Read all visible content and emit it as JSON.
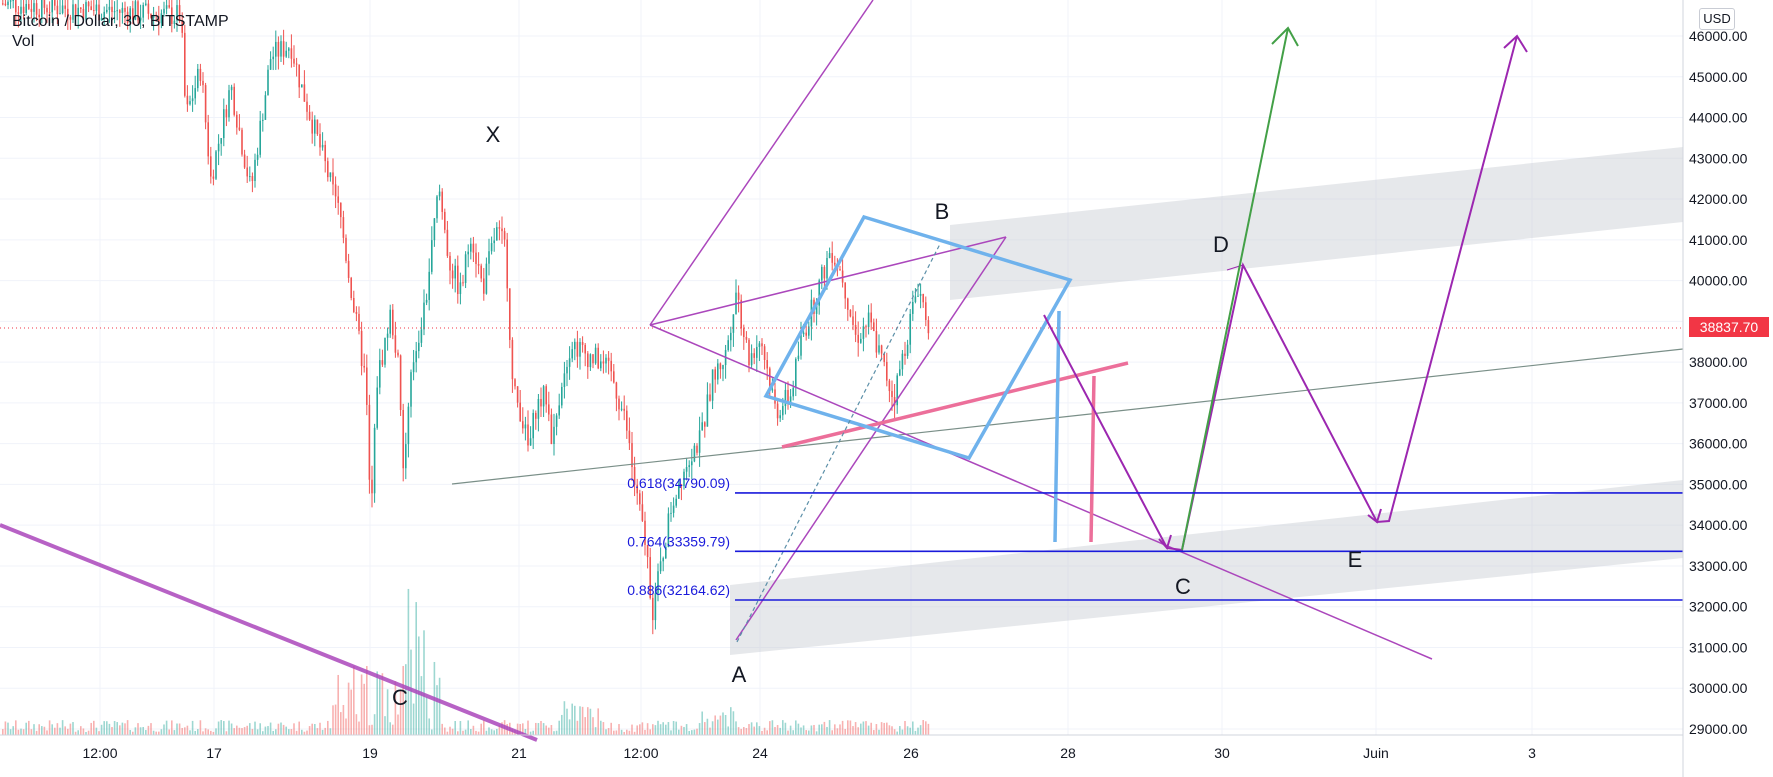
{
  "header": {
    "symbol_line": "Bitcoin / Dollar, 30, BITSTAMP",
    "vol_label": "Vol"
  },
  "currency_badge": "USD",
  "last_price": "38837.70",
  "colors": {
    "up": "#26a69a",
    "down": "#ef5350",
    "fib_line": "#1a1adb",
    "blue_channel": "#6fb2ec",
    "purple": "#ab47bc",
    "green_arrow": "#43a047",
    "pink": "#ec6f9a",
    "last_price": "#f23645"
  },
  "chart_data": {
    "type": "candlestick",
    "symbol": "Bitcoin / Dollar",
    "interval": "30",
    "exchange": "BITSTAMP",
    "y_range": [
      28700,
      46500
    ],
    "y_ticks": [
      "46000.00",
      "45000.00",
      "44000.00",
      "43000.00",
      "42000.00",
      "41000.00",
      "40000.00",
      "39000.00",
      "38000.00",
      "37000.00",
      "36000.00",
      "35000.00",
      "34000.00",
      "33000.00",
      "32000.00",
      "31000.00",
      "30000.00",
      "29000.00"
    ],
    "x_ticks": [
      "12:00",
      "17",
      "19",
      "21",
      "12:00",
      "24",
      "26",
      "28",
      "30",
      "Juin",
      "3"
    ],
    "fib_levels": [
      {
        "label": "0.618(34790.09)",
        "value": 34790.09
      },
      {
        "label": "0.764(33359.79)",
        "value": 33359.79
      },
      {
        "label": "0.886(32164.62)",
        "value": 32164.62
      }
    ],
    "wave_labels": [
      "X",
      "B",
      "D",
      "A",
      "C",
      "E",
      "C"
    ],
    "last_price": 38837.7,
    "price_path": [
      [
        0,
        46800
      ],
      [
        180,
        46500
      ],
      [
        185,
        44000
      ],
      [
        200,
        45200
      ],
      [
        210,
        42500
      ],
      [
        230,
        44800
      ],
      [
        250,
        42200
      ],
      [
        270,
        45500
      ],
      [
        290,
        45800
      ],
      [
        300,
        44800
      ],
      [
        320,
        43200
      ],
      [
        340,
        41500
      ],
      [
        355,
        39000
      ],
      [
        365,
        37500
      ],
      [
        370,
        34000
      ],
      [
        376,
        37500
      ],
      [
        390,
        39200
      ],
      [
        398,
        37800
      ],
      [
        402,
        35200
      ],
      [
        412,
        38000
      ],
      [
        425,
        39500
      ],
      [
        438,
        42300
      ],
      [
        448,
        40500
      ],
      [
        460,
        39700
      ],
      [
        470,
        41200
      ],
      [
        482,
        39800
      ],
      [
        495,
        41200
      ],
      [
        505,
        40800
      ],
      [
        512,
        37300
      ],
      [
        520,
        36800
      ],
      [
        528,
        35800
      ],
      [
        535,
        36900
      ],
      [
        545,
        37200
      ],
      [
        552,
        36000
      ],
      [
        560,
        37500
      ],
      [
        570,
        38500
      ],
      [
        585,
        38200
      ],
      [
        600,
        38000
      ],
      [
        612,
        37600
      ],
      [
        625,
        36500
      ],
      [
        635,
        34800
      ],
      [
        645,
        33500
      ],
      [
        652,
        31900
      ],
      [
        660,
        33000
      ],
      [
        670,
        34400
      ],
      [
        680,
        35200
      ],
      [
        690,
        35800
      ],
      [
        700,
        36100
      ],
      [
        712,
        37600
      ],
      [
        725,
        38200
      ],
      [
        735,
        39800
      ],
      [
        748,
        38100
      ],
      [
        760,
        38600
      ],
      [
        775,
        36800
      ],
      [
        790,
        37200
      ],
      [
        800,
        38500
      ],
      [
        815,
        39600
      ],
      [
        830,
        40800
      ],
      [
        842,
        40100
      ],
      [
        855,
        38600
      ],
      [
        868,
        39000
      ],
      [
        880,
        38100
      ],
      [
        893,
        37100
      ],
      [
        905,
        38500
      ],
      [
        917,
        39900
      ],
      [
        925,
        39200
      ],
      [
        930,
        38800
      ]
    ]
  }
}
